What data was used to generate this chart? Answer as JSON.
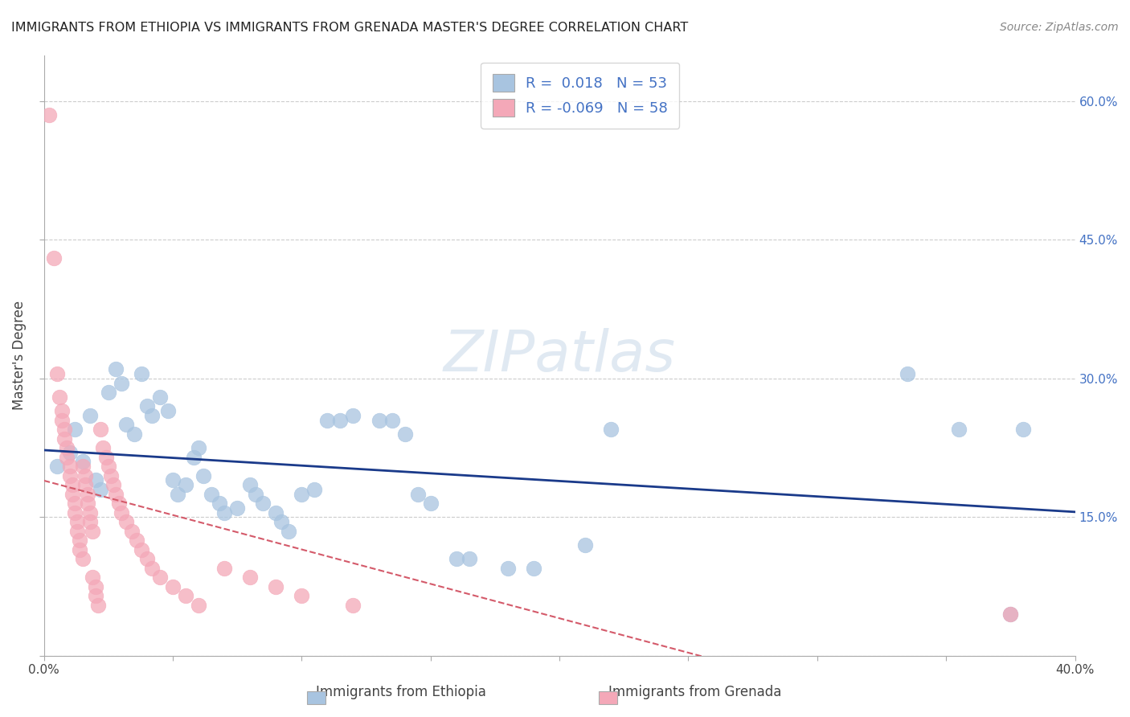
{
  "title": "IMMIGRANTS FROM ETHIOPIA VS IMMIGRANTS FROM GRENADA MASTER'S DEGREE CORRELATION CHART",
  "source": "Source: ZipAtlas.com",
  "ylabel": "Master's Degree",
  "xlim": [
    0.0,
    0.4
  ],
  "ylim": [
    0.0,
    0.65
  ],
  "r_ethiopia": 0.018,
  "n_ethiopia": 53,
  "r_grenada": -0.069,
  "n_grenada": 58,
  "color_ethiopia": "#a8c4e0",
  "color_grenada": "#f4a8b8",
  "line_color_ethiopia": "#1a3a8a",
  "line_color_grenada": "#d45a6a",
  "watermark": "ZIPatlas",
  "ethiopia_points": [
    [
      0.005,
      0.205
    ],
    [
      0.01,
      0.22
    ],
    [
      0.012,
      0.245
    ],
    [
      0.015,
      0.21
    ],
    [
      0.018,
      0.26
    ],
    [
      0.02,
      0.19
    ],
    [
      0.022,
      0.18
    ],
    [
      0.025,
      0.285
    ],
    [
      0.028,
      0.31
    ],
    [
      0.03,
      0.295
    ],
    [
      0.032,
      0.25
    ],
    [
      0.035,
      0.24
    ],
    [
      0.038,
      0.305
    ],
    [
      0.04,
      0.27
    ],
    [
      0.042,
      0.26
    ],
    [
      0.045,
      0.28
    ],
    [
      0.048,
      0.265
    ],
    [
      0.05,
      0.19
    ],
    [
      0.052,
      0.175
    ],
    [
      0.055,
      0.185
    ],
    [
      0.058,
      0.215
    ],
    [
      0.06,
      0.225
    ],
    [
      0.062,
      0.195
    ],
    [
      0.065,
      0.175
    ],
    [
      0.068,
      0.165
    ],
    [
      0.07,
      0.155
    ],
    [
      0.075,
      0.16
    ],
    [
      0.08,
      0.185
    ],
    [
      0.082,
      0.175
    ],
    [
      0.085,
      0.165
    ],
    [
      0.09,
      0.155
    ],
    [
      0.092,
      0.145
    ],
    [
      0.095,
      0.135
    ],
    [
      0.1,
      0.175
    ],
    [
      0.105,
      0.18
    ],
    [
      0.11,
      0.255
    ],
    [
      0.115,
      0.255
    ],
    [
      0.12,
      0.26
    ],
    [
      0.13,
      0.255
    ],
    [
      0.135,
      0.255
    ],
    [
      0.14,
      0.24
    ],
    [
      0.145,
      0.175
    ],
    [
      0.15,
      0.165
    ],
    [
      0.16,
      0.105
    ],
    [
      0.165,
      0.105
    ],
    [
      0.18,
      0.095
    ],
    [
      0.19,
      0.095
    ],
    [
      0.21,
      0.12
    ],
    [
      0.22,
      0.245
    ],
    [
      0.335,
      0.305
    ],
    [
      0.355,
      0.245
    ],
    [
      0.375,
      0.045
    ],
    [
      0.38,
      0.245
    ]
  ],
  "grenada_points": [
    [
      0.002,
      0.585
    ],
    [
      0.004,
      0.43
    ],
    [
      0.005,
      0.305
    ],
    [
      0.006,
      0.28
    ],
    [
      0.007,
      0.265
    ],
    [
      0.007,
      0.255
    ],
    [
      0.008,
      0.245
    ],
    [
      0.008,
      0.235
    ],
    [
      0.009,
      0.225
    ],
    [
      0.009,
      0.215
    ],
    [
      0.01,
      0.205
    ],
    [
      0.01,
      0.195
    ],
    [
      0.011,
      0.185
    ],
    [
      0.011,
      0.175
    ],
    [
      0.012,
      0.165
    ],
    [
      0.012,
      0.155
    ],
    [
      0.013,
      0.145
    ],
    [
      0.013,
      0.135
    ],
    [
      0.014,
      0.125
    ],
    [
      0.014,
      0.115
    ],
    [
      0.015,
      0.105
    ],
    [
      0.015,
      0.205
    ],
    [
      0.016,
      0.195
    ],
    [
      0.016,
      0.185
    ],
    [
      0.017,
      0.175
    ],
    [
      0.017,
      0.165
    ],
    [
      0.018,
      0.155
    ],
    [
      0.018,
      0.145
    ],
    [
      0.019,
      0.135
    ],
    [
      0.019,
      0.085
    ],
    [
      0.02,
      0.075
    ],
    [
      0.02,
      0.065
    ],
    [
      0.021,
      0.055
    ],
    [
      0.022,
      0.245
    ],
    [
      0.023,
      0.225
    ],
    [
      0.024,
      0.215
    ],
    [
      0.025,
      0.205
    ],
    [
      0.026,
      0.195
    ],
    [
      0.027,
      0.185
    ],
    [
      0.028,
      0.175
    ],
    [
      0.029,
      0.165
    ],
    [
      0.03,
      0.155
    ],
    [
      0.032,
      0.145
    ],
    [
      0.034,
      0.135
    ],
    [
      0.036,
      0.125
    ],
    [
      0.038,
      0.115
    ],
    [
      0.04,
      0.105
    ],
    [
      0.042,
      0.095
    ],
    [
      0.045,
      0.085
    ],
    [
      0.05,
      0.075
    ],
    [
      0.055,
      0.065
    ],
    [
      0.06,
      0.055
    ],
    [
      0.07,
      0.095
    ],
    [
      0.08,
      0.085
    ],
    [
      0.09,
      0.075
    ],
    [
      0.1,
      0.065
    ],
    [
      0.12,
      0.055
    ],
    [
      0.375,
      0.045
    ]
  ]
}
